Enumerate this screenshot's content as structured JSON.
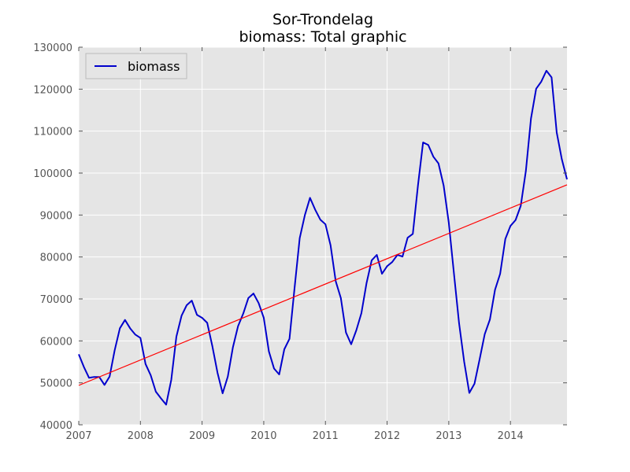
{
  "chart_data": {
    "type": "line",
    "title": "Sor-Trondelag",
    "subtitle": "biomass: Total graphic",
    "xlabel": "",
    "ylabel": "",
    "xlim": [
      2007.0,
      2014.917
    ],
    "ylim": [
      40000,
      130000
    ],
    "xticks": [
      2007,
      2008,
      2009,
      2010,
      2011,
      2012,
      2013,
      2014
    ],
    "xtick_labels": [
      "2007",
      "2008",
      "2009",
      "2010",
      "2011",
      "2012",
      "2013",
      "2014"
    ],
    "yticks": [
      40000,
      50000,
      60000,
      70000,
      80000,
      90000,
      100000,
      110000,
      120000,
      130000
    ],
    "ytick_labels": [
      "40000",
      "50000",
      "60000",
      "70000",
      "80000",
      "90000",
      "100000",
      "110000",
      "120000",
      "130000"
    ],
    "grid": true,
    "legend_position": "top-left",
    "background_color": "#e5e5e5",
    "series": [
      {
        "name": "biomass",
        "color": "#0000cc",
        "x": [
          2007.0,
          2007.083,
          2007.167,
          2007.25,
          2007.333,
          2007.417,
          2007.5,
          2007.583,
          2007.667,
          2007.75,
          2007.833,
          2007.917,
          2008.0,
          2008.083,
          2008.167,
          2008.25,
          2008.333,
          2008.417,
          2008.5,
          2008.583,
          2008.667,
          2008.75,
          2008.833,
          2008.917,
          2009.0,
          2009.083,
          2009.167,
          2009.25,
          2009.333,
          2009.417,
          2009.5,
          2009.583,
          2009.667,
          2009.75,
          2009.833,
          2009.917,
          2010.0,
          2010.083,
          2010.167,
          2010.25,
          2010.333,
          2010.417,
          2010.5,
          2010.583,
          2010.667,
          2010.75,
          2010.833,
          2010.917,
          2011.0,
          2011.083,
          2011.167,
          2011.25,
          2011.333,
          2011.417,
          2011.5,
          2011.583,
          2011.667,
          2011.75,
          2011.833,
          2011.917,
          2012.0,
          2012.083,
          2012.167,
          2012.25,
          2012.333,
          2012.417,
          2012.5,
          2012.583,
          2012.667,
          2012.75,
          2012.833,
          2012.917,
          2013.0,
          2013.083,
          2013.167,
          2013.25,
          2013.333,
          2013.417,
          2013.5,
          2013.583,
          2013.667,
          2013.75,
          2013.833,
          2013.917,
          2014.0,
          2014.083,
          2014.167,
          2014.25,
          2014.333,
          2014.417,
          2014.5,
          2014.583,
          2014.667,
          2014.75,
          2014.833,
          2014.917
        ],
        "values": [
          56800,
          53800,
          51200,
          51400,
          51400,
          49500,
          51500,
          57800,
          63000,
          65000,
          63000,
          61500,
          60700,
          54500,
          51800,
          47900,
          46300,
          44800,
          50700,
          61000,
          66000,
          68500,
          69600,
          66200,
          65500,
          64300,
          58700,
          52400,
          47500,
          51500,
          58500,
          63500,
          66500,
          70200,
          71300,
          69000,
          65500,
          57500,
          53400,
          52000,
          58000,
          60500,
          72700,
          84500,
          90000,
          94100,
          91300,
          88900,
          87800,
          82800,
          74200,
          70200,
          62000,
          59200,
          62500,
          66600,
          73800,
          79200,
          80500,
          76000,
          77800,
          78800,
          80500,
          80100,
          84600,
          85500,
          97000,
          107300,
          106700,
          103900,
          102300,
          97000,
          88200,
          76200,
          64200,
          55000,
          47600,
          49800,
          55600,
          61600,
          65100,
          72200,
          76000,
          84300,
          87400,
          88800,
          92200,
          100500,
          113000,
          120100,
          121800,
          124400,
          122800,
          109700,
          103300,
          98500
        ]
      },
      {
        "name": "",
        "color": "#ff0000",
        "x": [
          2007.0,
          2014.917
        ],
        "values": [
          49400,
          97200
        ]
      }
    ]
  }
}
